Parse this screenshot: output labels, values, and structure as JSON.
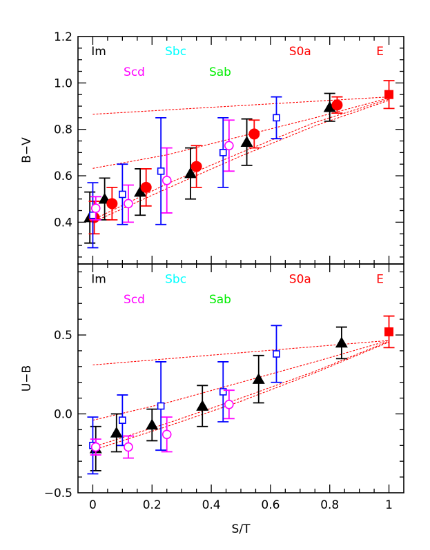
{
  "chart_data": [
    {
      "type": "scatter",
      "panel": "top",
      "ylabel": "B−V",
      "xlabel": "",
      "xlim": [
        -0.05,
        1.05
      ],
      "ylim": [
        0.22,
        1.2
      ],
      "x_ticks": [
        {
          "v": 0,
          "label": "0"
        },
        {
          "v": 0.2,
          "label": "0.2"
        },
        {
          "v": 0.4,
          "label": "0.4"
        },
        {
          "v": 0.6,
          "label": "0.6"
        },
        {
          "v": 0.8,
          "label": "0.8"
        },
        {
          "v": 1,
          "label": "1"
        }
      ],
      "y_ticks": [
        {
          "v": 0.4,
          "label": "0.4"
        },
        {
          "v": 0.6,
          "label": "0.6"
        },
        {
          "v": 0.8,
          "label": "0.8"
        },
        {
          "v": 1.0,
          "label": "1.0"
        },
        {
          "v": 1.2,
          "label": "1.2"
        }
      ],
      "type_labels": [
        {
          "text": "Im",
          "color": "#000000",
          "x": 0.02,
          "y": 1.12
        },
        {
          "text": "Sbc",
          "color": "#00ffff",
          "x": 0.28,
          "y": 1.12
        },
        {
          "text": "S0a",
          "color": "#ff0000",
          "x": 0.7,
          "y": 1.12
        },
        {
          "text": "E",
          "color": "#ff0000",
          "x": 0.97,
          "y": 1.12
        },
        {
          "text": "Scd",
          "color": "#ff00ff",
          "x": 0.14,
          "y": 1.03
        },
        {
          "text": "Sab",
          "color": "#00ee00",
          "x": 0.43,
          "y": 1.03
        }
      ],
      "series": [
        {
          "marker": "triangle",
          "color": "#000000",
          "points": [
            {
              "x": -0.01,
              "y": 0.42,
              "err": 0.11
            },
            {
              "x": 0.04,
              "y": 0.5,
              "err": 0.09
            },
            {
              "x": 0.16,
              "y": 0.53,
              "err": 0.1
            },
            {
              "x": 0.33,
              "y": 0.61,
              "err": 0.11
            },
            {
              "x": 0.52,
              "y": 0.745,
              "err": 0.1
            },
            {
              "x": 0.8,
              "y": 0.895,
              "err": 0.06
            }
          ]
        },
        {
          "marker": "filled-circle",
          "color": "#ff0000",
          "points": [
            {
              "x": 0.005,
              "y": 0.42,
              "err": 0.07
            },
            {
              "x": 0.065,
              "y": 0.48,
              "err": 0.07
            },
            {
              "x": 0.18,
              "y": 0.55,
              "err": 0.08
            },
            {
              "x": 0.35,
              "y": 0.64,
              "err": 0.09
            },
            {
              "x": 0.545,
              "y": 0.78,
              "err": 0.06
            },
            {
              "x": 0.825,
              "y": 0.905,
              "err": 0.035
            }
          ]
        },
        {
          "marker": "open-square",
          "color": "#0000ff",
          "points": [
            {
              "x": 0.0,
              "y": 0.43,
              "err": 0.14
            },
            {
              "x": 0.1,
              "y": 0.52,
              "err": 0.13
            },
            {
              "x": 0.23,
              "y": 0.62,
              "err": 0.23
            },
            {
              "x": 0.44,
              "y": 0.7,
              "err": 0.15
            },
            {
              "x": 0.62,
              "y": 0.85,
              "err": 0.09
            }
          ]
        },
        {
          "marker": "open-circle",
          "color": "#ff00ff",
          "points": [
            {
              "x": 0.01,
              "y": 0.46,
              "err": 0.05
            },
            {
              "x": 0.12,
              "y": 0.48,
              "err": 0.08
            },
            {
              "x": 0.25,
              "y": 0.58,
              "err": 0.14
            },
            {
              "x": 0.46,
              "y": 0.73,
              "err": 0.11
            }
          ]
        },
        {
          "marker": "filled-square",
          "color": "#ff0000",
          "points": [
            {
              "x": 1.0,
              "y": 0.95,
              "err": 0.06
            }
          ]
        }
      ],
      "model_lines": [
        [
          [
            0.0,
            0.865
          ],
          [
            1.0,
            0.94
          ]
        ],
        [
          [
            0.0,
            0.632
          ],
          [
            0.25,
            0.69
          ],
          [
            0.5,
            0.77
          ],
          [
            0.75,
            0.85
          ],
          [
            1.0,
            0.935
          ]
        ],
        [
          [
            0.0,
            0.41
          ],
          [
            0.25,
            0.565
          ],
          [
            0.5,
            0.7
          ],
          [
            0.75,
            0.83
          ],
          [
            1.0,
            0.93
          ]
        ],
        [
          [
            0.0,
            0.4
          ],
          [
            0.25,
            0.545
          ],
          [
            0.5,
            0.685
          ],
          [
            0.75,
            0.815
          ],
          [
            1.0,
            0.925
          ]
        ]
      ]
    },
    {
      "type": "scatter",
      "panel": "bottom",
      "ylabel": "U−B",
      "xlabel": "S/T",
      "xlim": [
        -0.05,
        1.05
      ],
      "ylim": [
        -0.5,
        0.95
      ],
      "x_ticks": [
        {
          "v": 0,
          "label": "0"
        },
        {
          "v": 0.2,
          "label": "0.2"
        },
        {
          "v": 0.4,
          "label": "0.4"
        },
        {
          "v": 0.6,
          "label": "0.6"
        },
        {
          "v": 0.8,
          "label": "0.8"
        },
        {
          "v": 1,
          "label": "1"
        }
      ],
      "y_ticks": [
        {
          "v": -0.5,
          "label": "−0.5"
        },
        {
          "v": 0.0,
          "label": "0.0"
        },
        {
          "v": 0.5,
          "label": "0.5"
        }
      ],
      "type_labels": [
        {
          "text": "Im",
          "color": "#000000",
          "x": 0.02,
          "y": 0.83
        },
        {
          "text": "Sbc",
          "color": "#00ffff",
          "x": 0.28,
          "y": 0.83
        },
        {
          "text": "S0a",
          "color": "#ff0000",
          "x": 0.7,
          "y": 0.83
        },
        {
          "text": "E",
          "color": "#ff0000",
          "x": 0.97,
          "y": 0.83
        },
        {
          "text": "Scd",
          "color": "#ff00ff",
          "x": 0.14,
          "y": 0.7
        },
        {
          "text": "Sab",
          "color": "#00ee00",
          "x": 0.43,
          "y": 0.7
        }
      ],
      "series": [
        {
          "marker": "triangle",
          "color": "#000000",
          "points": [
            {
              "x": 0.01,
              "y": -0.22,
              "err": 0.14
            },
            {
              "x": 0.08,
              "y": -0.12,
              "err": 0.12
            },
            {
              "x": 0.2,
              "y": -0.07,
              "err": 0.1
            },
            {
              "x": 0.37,
              "y": 0.05,
              "err": 0.13
            },
            {
              "x": 0.56,
              "y": 0.22,
              "err": 0.15
            },
            {
              "x": 0.84,
              "y": 0.45,
              "err": 0.1
            }
          ]
        },
        {
          "marker": "open-square",
          "color": "#0000ff",
          "points": [
            {
              "x": 0.0,
              "y": -0.2,
              "err": 0.18
            },
            {
              "x": 0.1,
              "y": -0.04,
              "err": 0.16
            },
            {
              "x": 0.23,
              "y": 0.05,
              "err": 0.28
            },
            {
              "x": 0.44,
              "y": 0.14,
              "err": 0.19
            },
            {
              "x": 0.62,
              "y": 0.38,
              "err": 0.18
            }
          ]
        },
        {
          "marker": "open-circle",
          "color": "#ff00ff",
          "points": [
            {
              "x": 0.01,
              "y": -0.21,
              "err": 0.05
            },
            {
              "x": 0.12,
              "y": -0.21,
              "err": 0.07
            },
            {
              "x": 0.25,
              "y": -0.13,
              "err": 0.11
            },
            {
              "x": 0.46,
              "y": 0.06,
              "err": 0.09
            }
          ]
        },
        {
          "marker": "filled-square",
          "color": "#ff0000",
          "points": [
            {
              "x": 1.0,
              "y": 0.52,
              "err": 0.1
            }
          ]
        }
      ],
      "model_lines": [
        [
          [
            0.0,
            0.31
          ],
          [
            1.0,
            0.465
          ]
        ],
        [
          [
            0.0,
            -0.04
          ],
          [
            0.25,
            0.07
          ],
          [
            0.5,
            0.2
          ],
          [
            0.75,
            0.33
          ],
          [
            1.0,
            0.465
          ]
        ],
        [
          [
            0.0,
            -0.21
          ],
          [
            0.25,
            -0.06
          ],
          [
            0.5,
            0.1
          ],
          [
            0.75,
            0.27
          ],
          [
            1.0,
            0.46
          ]
        ],
        [
          [
            0.0,
            -0.23
          ],
          [
            0.25,
            -0.08
          ],
          [
            0.5,
            0.08
          ],
          [
            0.75,
            0.26
          ],
          [
            1.0,
            0.455
          ]
        ]
      ]
    }
  ],
  "style": {
    "axis_color": "#000000",
    "model_line_color": "#ff0000",
    "background": "#ffffff"
  }
}
